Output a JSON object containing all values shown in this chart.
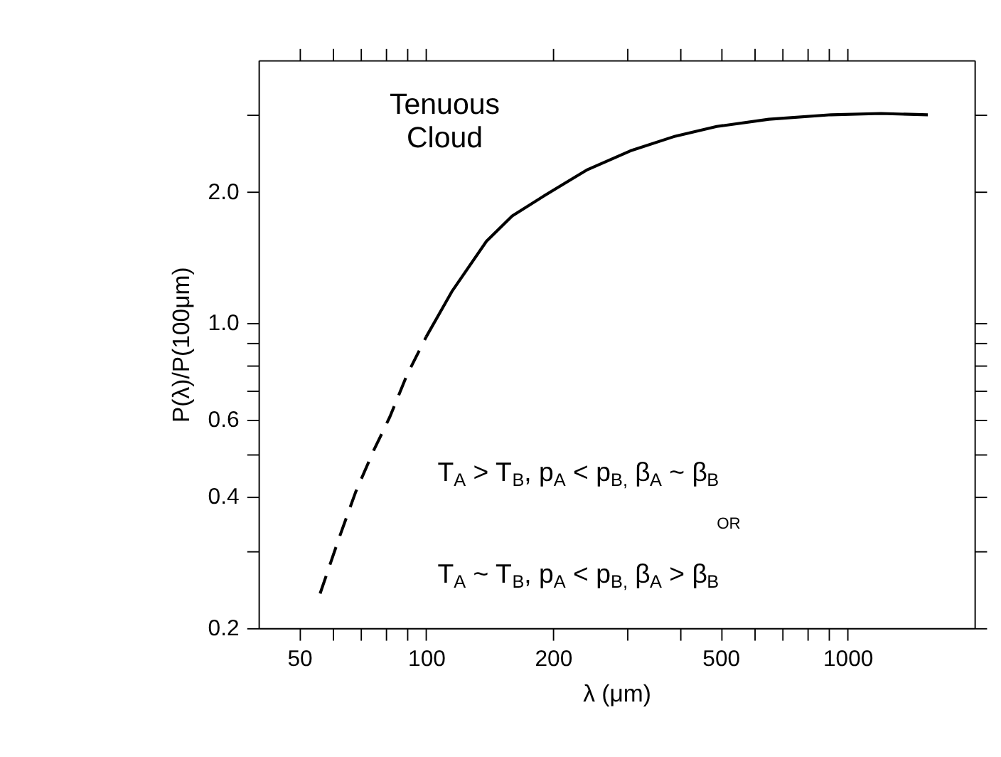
{
  "chart_data": {
    "type": "line",
    "xlabel": "λ (μm)",
    "ylabel": "P(λ)/P(100μm)",
    "log": "xy",
    "xlim": [
      40,
      2000
    ],
    "ylim": [
      0.2,
      4
    ],
    "xticks": [
      50,
      {
        "value": 60,
        "label": null
      },
      {
        "value": 70,
        "label": null
      },
      {
        "value": 80,
        "label": null
      },
      {
        "value": 90,
        "label": null
      },
      100,
      200,
      {
        "value": 300,
        "label": null
      },
      {
        "value": 400,
        "label": null
      },
      500,
      {
        "value": 600,
        "label": null
      },
      {
        "value": 700,
        "label": null
      },
      {
        "value": 800,
        "label": null
      },
      {
        "value": 900,
        "label": null
      },
      1000
    ],
    "yticks": [
      0.2,
      {
        "value": 0.3,
        "label": null
      },
      0.4,
      {
        "value": 0.5,
        "label": null
      },
      0.6,
      {
        "value": 0.7,
        "label": null
      },
      {
        "value": 0.8,
        "label": null
      },
      {
        "value": 0.9,
        "label": null
      },
      {
        "value": 1,
        "label": "1.0"
      },
      {
        "value": 2,
        "label": "2.0"
      },
      {
        "value": 3.0,
        "label": null
      }
    ],
    "grid": false,
    "marker": "none",
    "series": [
      {
        "color": "#000000",
        "line_style": "dashed",
        "x": [
          56,
          62,
          68,
          75,
          82,
          90,
          100
        ],
        "values": [
          0.24,
          0.32,
          0.41,
          0.51,
          0.61,
          0.76,
          0.93
        ]
      },
      {
        "color": "#000000",
        "line_style": "solid",
        "x": [
          100,
          115,
          139,
          160,
          191,
          240,
          305,
          390,
          489,
          650,
          914,
          1200,
          1550
        ],
        "values": [
          0.93,
          1.18,
          1.54,
          1.76,
          1.96,
          2.24,
          2.48,
          2.68,
          2.82,
          2.93,
          3.0,
          3.02,
          3.0
        ]
      }
    ],
    "annotations": [
      "Tenuous\nCloud",
      "T$_{A}$ > T$_{B}$, p$_{A}$ < p$_{B,}$ β$_{A}$ ~ β$_{B}$",
      "OR",
      "T$_{A}$ ~ T$_{B}$, p$_{A}$ < p$_{B,}$ β$_{A}$ > β$_{B}$"
    ]
  }
}
